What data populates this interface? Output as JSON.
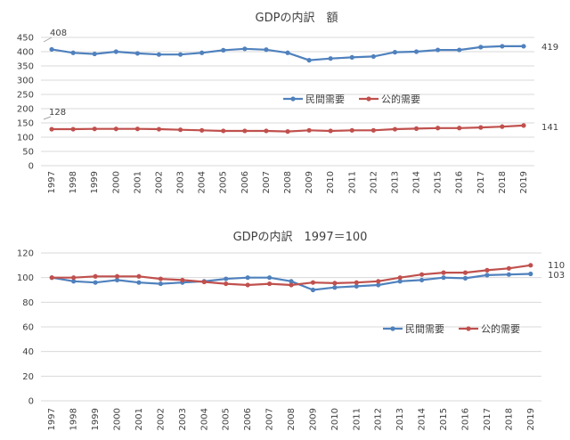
{
  "chart_data": [
    {
      "type": "line",
      "title": "GDPの内訳　額",
      "categories": [
        "1997",
        "1998",
        "1999",
        "2000",
        "2001",
        "2002",
        "2003",
        "2004",
        "2005",
        "2006",
        "2007",
        "2008",
        "2009",
        "2010",
        "2011",
        "2012",
        "2013",
        "2014",
        "2015",
        "2016",
        "2017",
        "2018",
        "2019"
      ],
      "ylim": [
        0,
        450
      ],
      "yticks": [
        0,
        50,
        100,
        150,
        200,
        250,
        300,
        350,
        400,
        450
      ],
      "grid": true,
      "legend": "center",
      "series": [
        {
          "name": "民間需要",
          "color": "#4f81bd",
          "values": [
            408,
            396,
            392,
            400,
            394,
            390,
            390,
            396,
            405,
            410,
            407,
            396,
            370,
            376,
            380,
            383,
            398,
            400,
            406,
            406,
            416,
            419,
            419
          ]
        },
        {
          "name": "公的需要",
          "color": "#c0504d",
          "values": [
            128,
            128,
            129,
            129,
            129,
            128,
            126,
            124,
            122,
            122,
            122,
            120,
            124,
            122,
            124,
            124,
            128,
            130,
            132,
            132,
            134,
            137,
            141
          ]
        }
      ],
      "annotations": [
        {
          "text": "408",
          "series": 0,
          "index": 0
        },
        {
          "text": "128",
          "series": 1,
          "index": 0
        },
        {
          "text": "419",
          "series": 0,
          "index": 22
        },
        {
          "text": "141",
          "series": 1,
          "index": 22
        }
      ]
    },
    {
      "type": "line",
      "title": "GDPの内訳　1997＝100",
      "categories": [
        "1997",
        "1998",
        "1999",
        "2000",
        "2001",
        "2002",
        "2003",
        "2004",
        "2005",
        "2006",
        "2007",
        "2008",
        "2009",
        "2010",
        "2011",
        "2012",
        "2013",
        "2014",
        "2015",
        "2016",
        "2017",
        "2018",
        "2019"
      ],
      "ylim": [
        0,
        120
      ],
      "yticks": [
        0,
        20,
        40,
        60,
        80,
        100,
        120
      ],
      "grid": true,
      "legend": "right",
      "series": [
        {
          "name": "民間需要",
          "color": "#4f81bd",
          "values": [
            100,
            97,
            96,
            98,
            96,
            95,
            96,
            97,
            99,
            100,
            100,
            97,
            90,
            92,
            93,
            94,
            97,
            98,
            100,
            99.5,
            102,
            102.5,
            103
          ]
        },
        {
          "name": "公的需要",
          "color": "#c0504d",
          "values": [
            100,
            100,
            101,
            101,
            101,
            99,
            98,
            96.5,
            95,
            94,
            95,
            94,
            96,
            95.5,
            96,
            97,
            100,
            102.5,
            104,
            104,
            106,
            107.5,
            110
          ]
        }
      ],
      "annotations": [
        {
          "text": "110",
          "series": 1,
          "index": 22
        },
        {
          "text": "103",
          "series": 0,
          "index": 22
        }
      ]
    }
  ]
}
